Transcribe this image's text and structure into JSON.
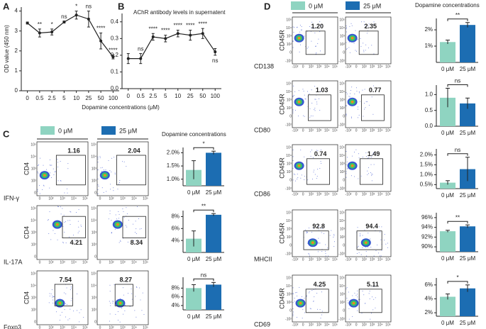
{
  "panel_labels": [
    "A",
    "B",
    "C",
    "D"
  ],
  "chart_data": [
    {
      "type": "line",
      "ylabel": "OD value (450 nm)",
      "xlabel": "Dopamine concentrations (μM)",
      "color": "#222222",
      "categories": [
        0,
        0.5,
        2.5,
        5,
        10,
        25,
        50,
        100
      ],
      "values": [
        3.4,
        2.9,
        2.95,
        3.45,
        3.8,
        3.6,
        2.5,
        1.7
      ],
      "errors": [
        0.05,
        0.2,
        0.15,
        0.05,
        0.2,
        0.4,
        0.4,
        0.1
      ],
      "annotations": [
        null,
        "**",
        "*",
        "ns",
        "*",
        "ns",
        "****",
        "****"
      ],
      "ylim": [
        0,
        4.2
      ],
      "yticks": [
        0,
        1,
        2,
        3,
        4
      ]
    },
    {
      "type": "line",
      "title": "AChR antibody levels in supernatent",
      "color": "#222222",
      "categories": [
        0,
        0.5,
        2.5,
        5,
        10,
        25,
        50,
        100
      ],
      "values": [
        0.18,
        0.18,
        0.31,
        0.3,
        0.33,
        0.32,
        0.33,
        0.22
      ],
      "errors": [
        0.03,
        0.03,
        0.02,
        0.02,
        0.02,
        0.03,
        0.03,
        0.02
      ],
      "annotations": [
        null,
        "ns",
        "****",
        "****",
        "****",
        "****",
        "****",
        "ns"
      ],
      "ylim": [
        0,
        0.45
      ],
      "yticks": [
        {
          "value": 0,
          "label": "0.0"
        },
        0.1,
        0.2,
        0.3,
        0.4
      ]
    },
    {
      "type": "bar",
      "title": "Dopamine concentrations",
      "categories": [
        "0 μM",
        "25 μM"
      ],
      "colors": [
        "#8fd4c1",
        "#1c6db2"
      ],
      "values": [
        1.35,
        2.0
      ],
      "errors": [
        0.35,
        0.06
      ],
      "significance": "*",
      "ylim": [
        0.75,
        2.2
      ],
      "yticks": [
        {
          "value": 1.0,
          "label": "1.0%"
        },
        {
          "value": 1.5,
          "label": "1.5%"
        },
        {
          "value": 2.0,
          "label": "2.0%"
        }
      ]
    },
    {
      "type": "bar",
      "categories": [
        "0 μM",
        "25 μM"
      ],
      "colors": [
        "#8fd4c1",
        "#1c6db2"
      ],
      "values": [
        4.3,
        8.3
      ],
      "errors": [
        1.3,
        0.2
      ],
      "significance": "**",
      "ylim": [
        2,
        9
      ],
      "yticks": [
        {
          "value": 4,
          "label": "4%"
        },
        {
          "value": 6,
          "label": "6%"
        },
        {
          "value": 8,
          "label": "8%"
        }
      ]
    },
    {
      "type": "bar",
      "categories": [
        "0 μM",
        "25 μM"
      ],
      "colors": [
        "#8fd4c1",
        "#1c6db2"
      ],
      "values": [
        8.0,
        8.8
      ],
      "errors": [
        0.8,
        0.5
      ],
      "significance": "ns",
      "ylim": [
        3,
        10.5
      ],
      "yticks": [
        {
          "value": 4,
          "label": "4%"
        },
        {
          "value": 6,
          "label": "6%"
        },
        {
          "value": 8,
          "label": "8%"
        }
      ]
    },
    {
      "type": "bar",
      "title": "Dopamine concentrations",
      "categories": [
        "0 μM",
        "25 μM"
      ],
      "colors": [
        "#8fd4c1",
        "#1c6db2"
      ],
      "values": [
        1.25,
        2.3
      ],
      "errors": [
        0.12,
        0.15
      ],
      "significance": "**",
      "ylim": [
        0,
        2.7
      ],
      "yticks": [
        {
          "value": 1,
          "label": "1%"
        },
        {
          "value": 2,
          "label": "2%"
        }
      ]
    },
    {
      "type": "bar",
      "categories": [
        "0 μM",
        "25 μM"
      ],
      "colors": [
        "#8fd4c1",
        "#1c6db2"
      ],
      "values": [
        0.9,
        0.72
      ],
      "errors": [
        0.3,
        0.17
      ],
      "significance": "ns",
      "ylim": [
        0,
        1.3
      ],
      "yticks": [
        {
          "value": 0,
          "label": "0.0"
        },
        0.5,
        {
          "value": 1,
          "label": "1.0"
        }
      ]
    },
    {
      "type": "bar",
      "categories": [
        "0 μM",
        "25 μM"
      ],
      "colors": [
        "#8fd4c1",
        "#1c6db2"
      ],
      "values": [
        0.6,
        1.28
      ],
      "errors": [
        0.1,
        0.6
      ],
      "significance": "ns",
      "ylim": [
        0.3,
        2.3
      ],
      "yticks": [
        {
          "value": 0.5,
          "label": "0.5%"
        },
        {
          "value": 1.0,
          "label": "1.0%"
        },
        {
          "value": 1.5,
          "label": "1.5%"
        },
        {
          "value": 2.0,
          "label": "2.0%"
        }
      ]
    },
    {
      "type": "bar",
      "categories": [
        "0 μM",
        "25 μM"
      ],
      "colors": [
        "#8fd4c1",
        "#1c6db2"
      ],
      "values": [
        93.2,
        94.2
      ],
      "errors": [
        0.2,
        0.3
      ],
      "significance": "**",
      "ylim": [
        89,
        97
      ],
      "yticks": [
        {
          "value": 90,
          "label": "90%"
        },
        {
          "value": 92,
          "label": "92%"
        },
        {
          "value": 94,
          "label": "94%"
        },
        {
          "value": 96,
          "label": "96%"
        }
      ]
    },
    {
      "type": "bar",
      "categories": [
        "0 μM",
        "25 μM"
      ],
      "colors": [
        "#8fd4c1",
        "#1c6db2"
      ],
      "values": [
        4.3,
        5.5
      ],
      "errors": [
        0.4,
        0.5
      ],
      "significance": "*",
      "ylim": [
        1.5,
        7
      ],
      "yticks": [
        {
          "value": 2,
          "label": "2%"
        },
        {
          "value": 4,
          "label": "4%"
        },
        {
          "value": 6,
          "label": "6%"
        }
      ]
    }
  ],
  "flow": {
    "C": {
      "legend": [
        {
          "name": "0 μM",
          "color": "#8fd4c1"
        },
        {
          "name": "25 μM",
          "color": "#1c6db2"
        }
      ],
      "y_label": "CD4",
      "axis_ticks": [
        "0",
        "10²",
        "10³",
        "10⁴",
        "10⁵"
      ],
      "rows": [
        {
          "label": "IFN-γ",
          "gates": [
            "1.16",
            "2.04"
          ]
        },
        {
          "label": "IL-17A",
          "gates": [
            "4.21",
            "8.34"
          ]
        },
        {
          "label": "Foxp3",
          "gates": [
            "7.54",
            "8.27"
          ]
        }
      ]
    },
    "D": {
      "legend": [
        {
          "name": "0 μM",
          "color": "#8fd4c1"
        },
        {
          "name": "25 μM",
          "color": "#1c6db2"
        }
      ],
      "y_label": "CD45R",
      "axis_ticks": [
        "-10²",
        "0",
        "10²",
        "10³",
        "10⁴",
        "10⁵"
      ],
      "rows": [
        {
          "label": "CD138",
          "gates": [
            "1.20",
            "2.35"
          ]
        },
        {
          "label": "CD80",
          "gates": [
            "1.03",
            "0.77"
          ]
        },
        {
          "label": "CD86",
          "gates": [
            "0.74",
            "1.49"
          ]
        },
        {
          "label": "MHCII",
          "gates": [
            "92.8",
            "94.4"
          ]
        },
        {
          "label": "CD69",
          "gates": [
            "4.25",
            "5.11"
          ]
        }
      ]
    }
  }
}
